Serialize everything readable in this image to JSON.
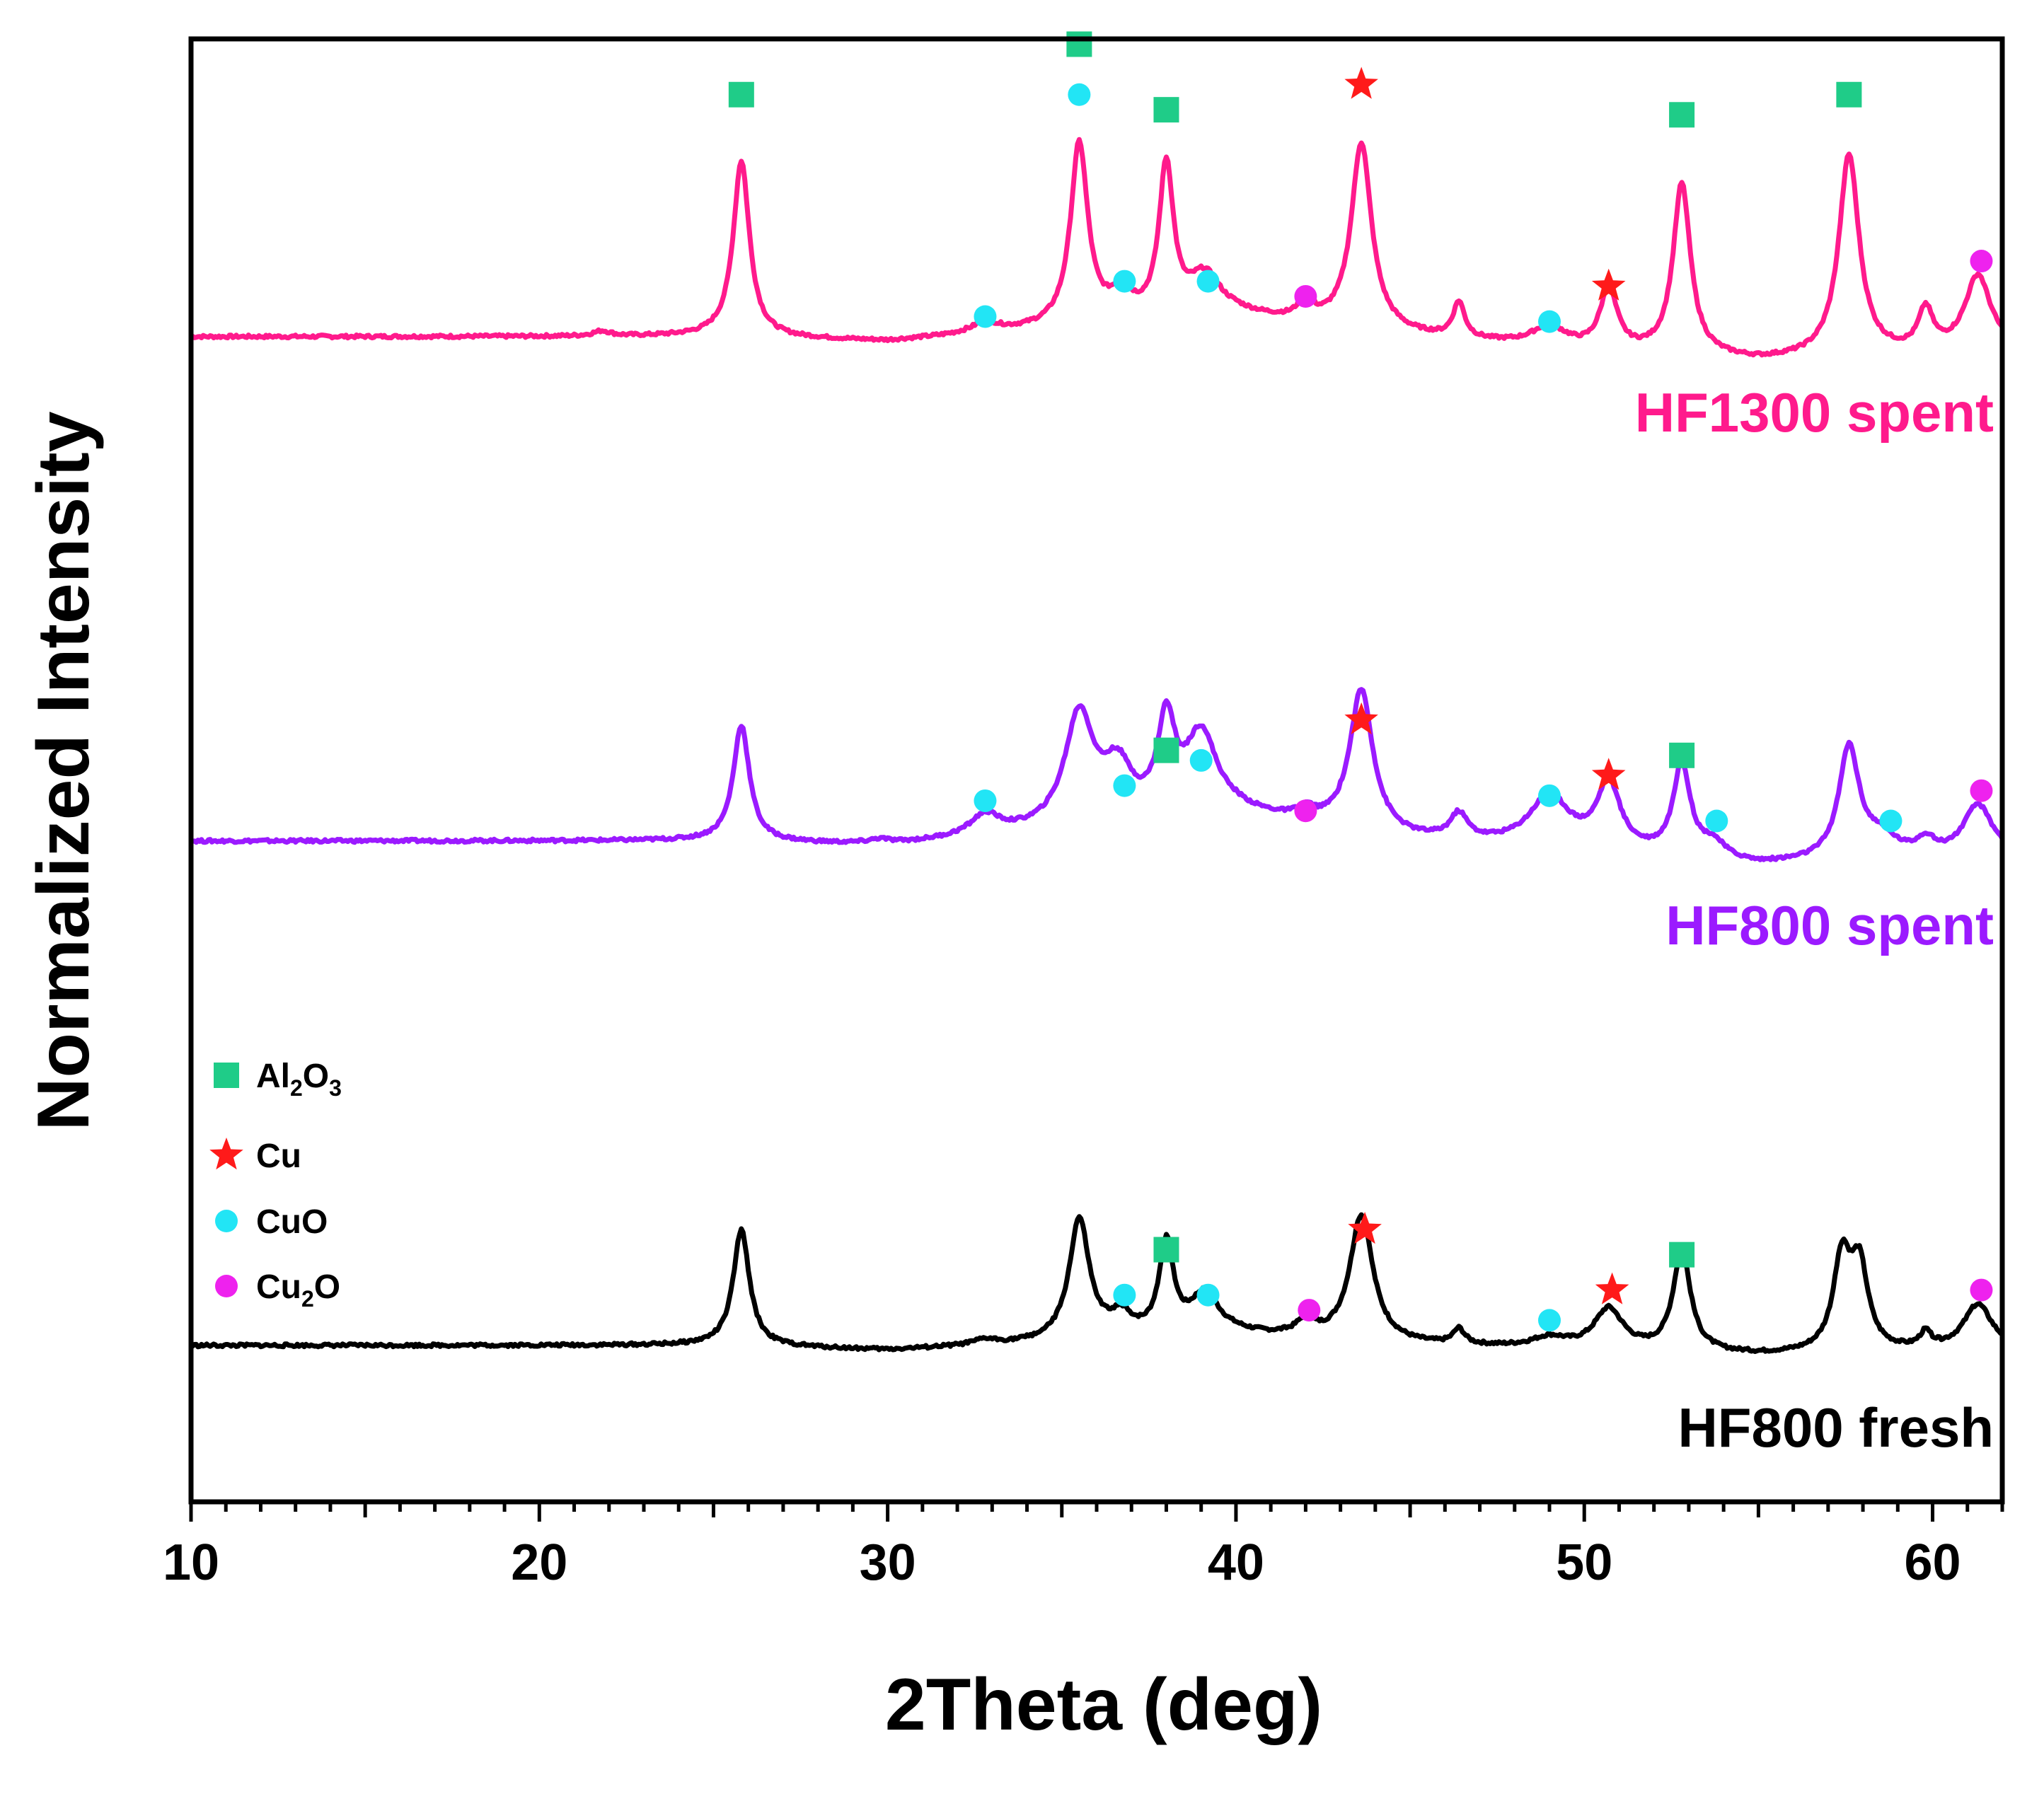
{
  "chart_data": {
    "type": "line",
    "title": "",
    "xlabel": "2Theta (deg)",
    "ylabel": "Normalized Intensity",
    "xlim": [
      10,
      62
    ],
    "ylim": [
      0,
      3
    ],
    "x_ticks": [
      10,
      20,
      30,
      40,
      50,
      60
    ],
    "x_tick_labels": [
      "10",
      "20",
      "30",
      "40",
      "50",
      "60"
    ],
    "y_ticks": [],
    "grid": false,
    "series": [
      {
        "name": "HF1300 spent",
        "color": "#ff1a8c",
        "offset": 2.0,
        "baseline": [
          [
            10,
            0.0
          ],
          [
            25,
            0.0
          ],
          [
            30,
            -0.01
          ],
          [
            40,
            0.04
          ],
          [
            45,
            0.0
          ],
          [
            50,
            -0.03
          ],
          [
            55,
            -0.05
          ],
          [
            62,
            -0.03
          ]
        ],
        "peaks": [
          {
            "x": 21.8,
            "h": 0.01,
            "w": 0.3
          },
          {
            "x": 25.8,
            "h": 0.35,
            "w": 0.28
          },
          {
            "x": 32.8,
            "h": 0.02,
            "w": 0.5
          },
          {
            "x": 35.5,
            "h": 0.36,
            "w": 0.3
          },
          {
            "x": 36.7,
            "h": 0.05,
            "w": 0.4
          },
          {
            "x": 38.0,
            "h": 0.3,
            "w": 0.25
          },
          {
            "x": 39.1,
            "h": 0.08,
            "w": 0.55
          },
          {
            "x": 42.0,
            "h": 0.05,
            "w": 0.2
          },
          {
            "x": 43.6,
            "h": 0.37,
            "w": 0.35
          },
          {
            "x": 46.4,
            "h": 0.07,
            "w": 0.2
          },
          {
            "x": 49.0,
            "h": 0.04,
            "w": 0.6
          },
          {
            "x": 50.7,
            "h": 0.12,
            "w": 0.3
          },
          {
            "x": 52.8,
            "h": 0.34,
            "w": 0.3
          },
          {
            "x": 57.6,
            "h": 0.4,
            "w": 0.35
          },
          {
            "x": 59.8,
            "h": 0.08,
            "w": 0.25
          },
          {
            "x": 61.3,
            "h": 0.15,
            "w": 0.45
          }
        ]
      },
      {
        "name": "HF800 spent",
        "color": "#9b1aff",
        "offset": 1.0,
        "baseline": [
          [
            10,
            0.0
          ],
          [
            25,
            0.0
          ],
          [
            30,
            -0.01
          ],
          [
            40,
            0.05
          ],
          [
            45,
            0.0
          ],
          [
            50,
            -0.02
          ],
          [
            55,
            -0.05
          ],
          [
            62,
            -0.03
          ]
        ],
        "peaks": [
          {
            "x": 25.8,
            "h": 0.23,
            "w": 0.28
          },
          {
            "x": 29.8,
            "h": 0.01,
            "w": 0.4
          },
          {
            "x": 32.8,
            "h": 0.04,
            "w": 0.5
          },
          {
            "x": 35.5,
            "h": 0.22,
            "w": 0.5
          },
          {
            "x": 36.6,
            "h": 0.1,
            "w": 0.5
          },
          {
            "x": 38.0,
            "h": 0.18,
            "w": 0.3
          },
          {
            "x": 39.0,
            "h": 0.16,
            "w": 0.55
          },
          {
            "x": 42.0,
            "h": 0.02,
            "w": 0.3
          },
          {
            "x": 43.6,
            "h": 0.28,
            "w": 0.4
          },
          {
            "x": 46.4,
            "h": 0.05,
            "w": 0.3
          },
          {
            "x": 49.0,
            "h": 0.1,
            "w": 0.7
          },
          {
            "x": 50.7,
            "h": 0.13,
            "w": 0.4
          },
          {
            "x": 52.8,
            "h": 0.18,
            "w": 0.3
          },
          {
            "x": 53.7,
            "h": 0.03,
            "w": 0.4
          },
          {
            "x": 57.6,
            "h": 0.22,
            "w": 0.35
          },
          {
            "x": 58.5,
            "h": 0.04,
            "w": 0.6
          },
          {
            "x": 59.8,
            "h": 0.03,
            "w": 0.3
          },
          {
            "x": 61.3,
            "h": 0.1,
            "w": 0.5
          }
        ]
      },
      {
        "name": "HF800 fresh",
        "color": "#000000",
        "offset": 0.0,
        "baseline": [
          [
            10,
            0.0
          ],
          [
            25,
            0.0
          ],
          [
            30,
            -0.01
          ],
          [
            40,
            0.02
          ],
          [
            45,
            0.0
          ],
          [
            50,
            -0.01
          ],
          [
            55,
            -0.02
          ],
          [
            62,
            -0.01
          ]
        ],
        "peaks": [
          {
            "x": 25.8,
            "h": 0.23,
            "w": 0.28
          },
          {
            "x": 32.8,
            "h": 0.01,
            "w": 0.4
          },
          {
            "x": 35.5,
            "h": 0.24,
            "w": 0.35
          },
          {
            "x": 36.7,
            "h": 0.04,
            "w": 0.4
          },
          {
            "x": 38.0,
            "h": 0.18,
            "w": 0.25
          },
          {
            "x": 39.1,
            "h": 0.08,
            "w": 0.5
          },
          {
            "x": 42.0,
            "h": 0.03,
            "w": 0.3
          },
          {
            "x": 43.6,
            "h": 0.25,
            "w": 0.4
          },
          {
            "x": 46.4,
            "h": 0.03,
            "w": 0.2
          },
          {
            "x": 49.0,
            "h": 0.02,
            "w": 0.6
          },
          {
            "x": 50.7,
            "h": 0.08,
            "w": 0.5
          },
          {
            "x": 52.8,
            "h": 0.2,
            "w": 0.3
          },
          {
            "x": 57.4,
            "h": 0.18,
            "w": 0.3
          },
          {
            "x": 57.9,
            "h": 0.16,
            "w": 0.3
          },
          {
            "x": 59.8,
            "h": 0.03,
            "w": 0.2
          },
          {
            "x": 61.3,
            "h": 0.09,
            "w": 0.5
          }
        ]
      }
    ],
    "phase_markers": [
      {
        "series": "HF1300 spent",
        "phase": "Al2O3",
        "x": 25.8,
        "y": 2.48
      },
      {
        "series": "HF1300 spent",
        "phase": "Al2O3",
        "x": 35.5,
        "y": 2.58
      },
      {
        "series": "HF1300 spent",
        "phase": "Al2O3",
        "x": 38.0,
        "y": 2.45
      },
      {
        "series": "HF1300 spent",
        "phase": "Al2O3",
        "x": 52.8,
        "y": 2.44
      },
      {
        "series": "HF1300 spent",
        "phase": "Al2O3",
        "x": 57.6,
        "y": 2.48
      },
      {
        "series": "HF1300 spent",
        "phase": "CuO",
        "x": 32.8,
        "y": 2.04
      },
      {
        "series": "HF1300 spent",
        "phase": "CuO",
        "x": 35.5,
        "y": 2.48
      },
      {
        "series": "HF1300 spent",
        "phase": "CuO",
        "x": 36.8,
        "y": 2.11
      },
      {
        "series": "HF1300 spent",
        "phase": "CuO",
        "x": 39.2,
        "y": 2.11
      },
      {
        "series": "HF1300 spent",
        "phase": "CuO",
        "x": 49.0,
        "y": 2.03
      },
      {
        "series": "HF1300 spent",
        "phase": "Cu2O",
        "x": 42.0,
        "y": 2.08
      },
      {
        "series": "HF1300 spent",
        "phase": "Cu2O",
        "x": 61.4,
        "y": 2.15
      },
      {
        "series": "HF1300 spent",
        "phase": "Cu",
        "x": 43.6,
        "y": 2.5
      },
      {
        "series": "HF1300 spent",
        "phase": "Cu",
        "x": 50.7,
        "y": 2.1
      },
      {
        "series": "HF800 spent",
        "phase": "Al2O3",
        "x": 38.0,
        "y": 1.18
      },
      {
        "series": "HF800 spent",
        "phase": "Al2O3",
        "x": 52.8,
        "y": 1.17
      },
      {
        "series": "HF800 spent",
        "phase": "CuO",
        "x": 32.8,
        "y": 1.08
      },
      {
        "series": "HF800 spent",
        "phase": "CuO",
        "x": 36.8,
        "y": 1.11
      },
      {
        "series": "HF800 spent",
        "phase": "CuO",
        "x": 39.0,
        "y": 1.16
      },
      {
        "series": "HF800 spent",
        "phase": "CuO",
        "x": 49.0,
        "y": 1.09
      },
      {
        "series": "HF800 spent",
        "phase": "CuO",
        "x": 53.8,
        "y": 1.04
      },
      {
        "series": "HF800 spent",
        "phase": "CuO",
        "x": 58.8,
        "y": 1.04
      },
      {
        "series": "HF800 spent",
        "phase": "Cu2O",
        "x": 42.0,
        "y": 1.06
      },
      {
        "series": "HF800 spent",
        "phase": "Cu2O",
        "x": 61.4,
        "y": 1.1
      },
      {
        "series": "HF800 spent",
        "phase": "Cu",
        "x": 43.6,
        "y": 1.24
      },
      {
        "series": "HF800 spent",
        "phase": "Cu",
        "x": 50.7,
        "y": 1.13
      },
      {
        "series": "HF800 fresh",
        "phase": "Al2O3",
        "x": 38.0,
        "y": 0.19
      },
      {
        "series": "HF800 fresh",
        "phase": "Al2O3",
        "x": 52.8,
        "y": 0.18
      },
      {
        "series": "HF800 fresh",
        "phase": "CuO",
        "x": 36.8,
        "y": 0.1
      },
      {
        "series": "HF800 fresh",
        "phase": "CuO",
        "x": 39.2,
        "y": 0.1
      },
      {
        "series": "HF800 fresh",
        "phase": "CuO",
        "x": 49.0,
        "y": 0.05
      },
      {
        "series": "HF800 fresh",
        "phase": "Cu2O",
        "x": 42.1,
        "y": 0.07
      },
      {
        "series": "HF800 fresh",
        "phase": "Cu2O",
        "x": 61.4,
        "y": 0.11
      },
      {
        "series": "HF800 fresh",
        "phase": "Cu",
        "x": 43.7,
        "y": 0.23
      },
      {
        "series": "HF800 fresh",
        "phase": "Cu",
        "x": 50.8,
        "y": 0.11
      }
    ],
    "legend": {
      "placement": "bottom-left",
      "items": [
        {
          "phase": "Al2O3",
          "label": "Al",
          "sub1": "2",
          "mid": "O",
          "sub2": "3",
          "shape": "square",
          "color": "#1fcc88"
        },
        {
          "phase": "Cu",
          "label": "Cu",
          "sub1": "",
          "mid": "",
          "sub2": "",
          "shape": "star",
          "color": "#ff1a1a"
        },
        {
          "phase": "CuO",
          "label": "CuO",
          "sub1": "",
          "mid": "",
          "sub2": "",
          "shape": "circle",
          "color": "#22e5f5"
        },
        {
          "phase": "Cu2O",
          "label": "Cu",
          "sub1": "2",
          "mid": "O",
          "sub2": "",
          "shape": "circle",
          "color": "#ee22ee"
        }
      ]
    }
  }
}
